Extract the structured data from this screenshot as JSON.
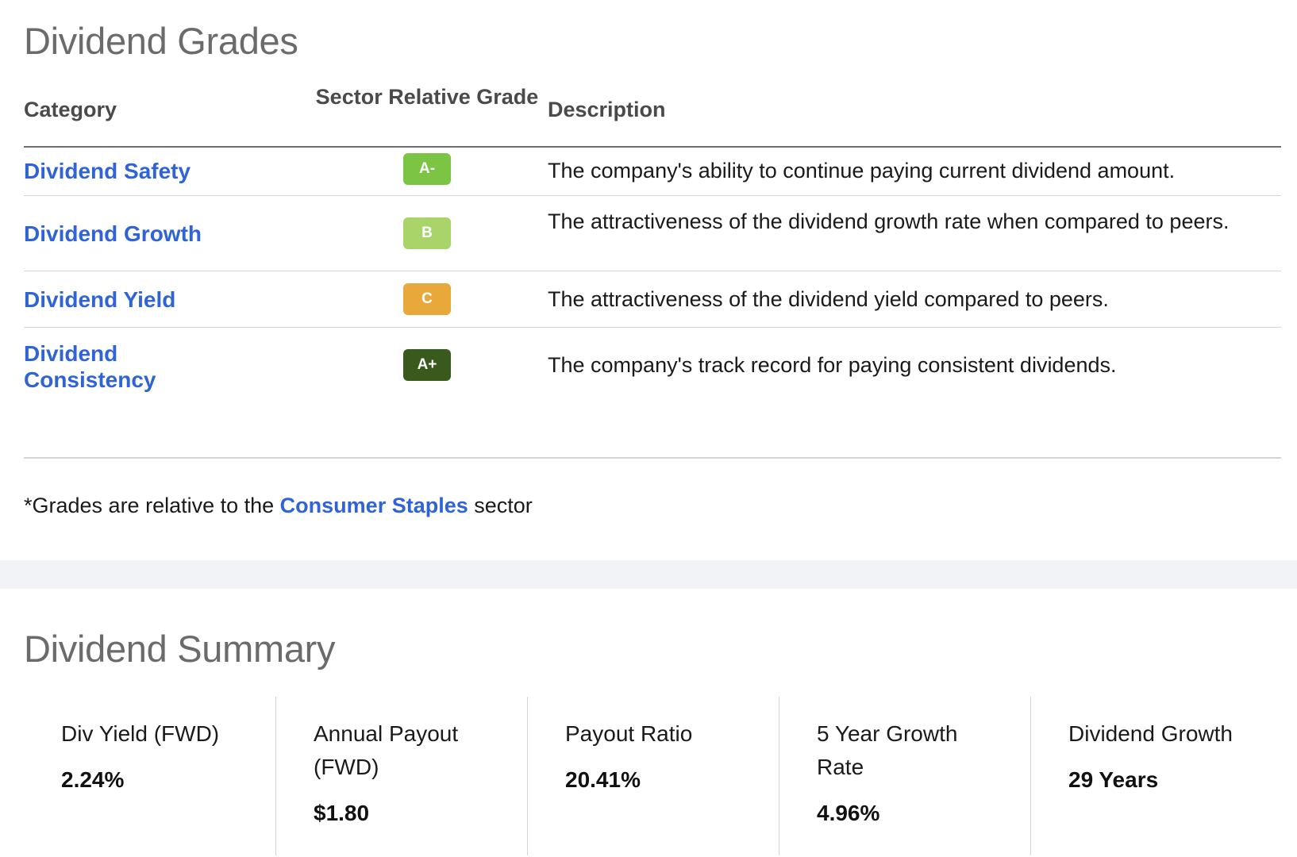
{
  "grades": {
    "title": "Dividend Grades",
    "columns": {
      "category": "Category",
      "grade": "Sector Relative Grade",
      "description": "Description"
    },
    "rows": [
      {
        "category": "Dividend Safety",
        "grade": "A-",
        "grade_color": "#7cc443",
        "description": "The company's ability to continue paying current dividend amount."
      },
      {
        "category": "Dividend Growth",
        "grade": "B",
        "grade_color": "#a8d469",
        "description": "The attractiveness of the dividend growth rate when compared to peers."
      },
      {
        "category": "Dividend Yield",
        "grade": "C",
        "grade_color": "#e8a93a",
        "description": "The attractiveness of the dividend yield compared to peers."
      },
      {
        "category": "Dividend Consistency",
        "grade": "A+",
        "grade_color": "#395a1c",
        "description": "The company's track record for paying consistent dividends."
      }
    ],
    "footnote": {
      "prefix": "*Grades are relative to the ",
      "link": "Consumer Staples",
      "suffix": " sector"
    }
  },
  "summary": {
    "title": "Dividend Summary",
    "cards": [
      {
        "label": "Div Yield (FWD)",
        "value": "2.24%"
      },
      {
        "label": "Annual Payout (FWD)",
        "value": "$1.80"
      },
      {
        "label": "Payout Ratio",
        "value": "20.41%"
      },
      {
        "label": "5 Year Growth Rate",
        "value": "4.96%"
      },
      {
        "label": "Dividend Growth",
        "value": "29 Years"
      }
    ]
  },
  "colors": {
    "link": "#2f63d6",
    "title": "#6b6b6b",
    "band": "#f2f3f6"
  }
}
